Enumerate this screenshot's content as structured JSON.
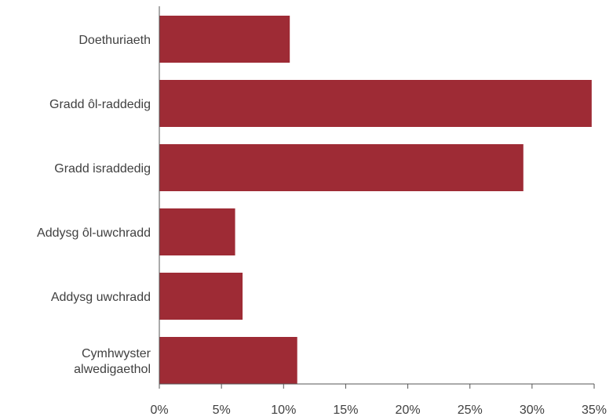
{
  "chart_data": {
    "type": "bar",
    "orientation": "horizontal",
    "categories": [
      [
        "Doethuriaeth"
      ],
      [
        "Gradd ôl-raddedig"
      ],
      [
        "Gradd israddedig"
      ],
      [
        "Addysg ôl-uwchradd"
      ],
      [
        "Addysg uwchradd"
      ],
      [
        "Cymhwyster",
        "alwedigaethol"
      ]
    ],
    "values": [
      10.5,
      34.8,
      29.3,
      6.1,
      6.7,
      11.1
    ],
    "xlim": [
      0,
      35
    ],
    "xticks": [
      0,
      5,
      10,
      15,
      20,
      25,
      30,
      35
    ],
    "xtick_labels": [
      "0%",
      "5%",
      "10%",
      "15%",
      "20%",
      "25%",
      "30%",
      "35%"
    ],
    "bar_color": "#9e2b35",
    "axis_color": "#555555",
    "grid": false,
    "title": "",
    "xlabel": "",
    "ylabel": ""
  }
}
